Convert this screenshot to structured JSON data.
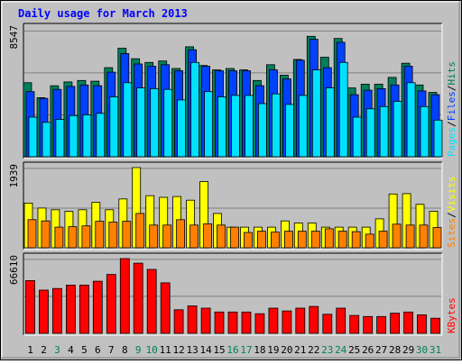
{
  "title": "Daily usage for March 2013",
  "colors": {
    "outer_bg": "#c0c0c0",
    "plot_bg": "#c0c0c0",
    "hits": "#00805c",
    "files": "#0040ff",
    "pages": "#00e0ff",
    "visits": "#ffff00",
    "sites": "#ff8000",
    "kbytes": "#ff0000",
    "title": "#0000ff",
    "day_weekday": "#000000",
    "day_weekend": "#00805c",
    "gridline": "#808080"
  },
  "chart_data": [
    {
      "type": "bar",
      "panel": "hits-files-pages",
      "y_max_label": "8547",
      "ylim": [
        0,
        8547
      ],
      "side_labels": [
        "Pages",
        "Files",
        "Hits"
      ],
      "side_colors": [
        "#00e0ff",
        "#0040ff",
        "#00805c"
      ],
      "categories": [
        "1",
        "2",
        "3",
        "4",
        "5",
        "6",
        "7",
        "8",
        "9",
        "10",
        "11",
        "12",
        "13",
        "14",
        "15",
        "16",
        "17",
        "18",
        "19",
        "20",
        "21",
        "22",
        "23",
        "24",
        "25",
        "26",
        "27",
        "28",
        "29",
        "30",
        "31"
      ],
      "series": [
        {
          "name": "Hits",
          "color": "#00805c",
          "values": [
            4950,
            3950,
            4740,
            5000,
            5100,
            5050,
            5950,
            7250,
            6550,
            6300,
            6400,
            5900,
            7350,
            6100,
            5800,
            5900,
            5800,
            5100,
            6150,
            5450,
            6500,
            8050,
            6650,
            7900,
            4600,
            4850,
            4850,
            5300,
            6250,
            4800,
            4300
          ]
        },
        {
          "name": "Files",
          "color": "#0040ff",
          "values": [
            4350,
            3900,
            4500,
            4700,
            4800,
            4750,
            5650,
            6900,
            6200,
            6050,
            6150,
            5750,
            7150,
            6050,
            5750,
            5750,
            5750,
            4750,
            5800,
            5200,
            6450,
            7850,
            5950,
            7650,
            4150,
            4450,
            4550,
            4800,
            6050,
            4400,
            4150
          ]
        },
        {
          "name": "Pages",
          "color": "#00e0ff",
          "values": [
            2650,
            2300,
            2500,
            2750,
            2800,
            2900,
            4000,
            4950,
            4600,
            4550,
            4500,
            3800,
            6300,
            4350,
            4000,
            4100,
            4100,
            3550,
            4200,
            3500,
            4100,
            5800,
            4600,
            6300,
            2650,
            3200,
            3350,
            3700,
            4950,
            3350,
            2450
          ]
        }
      ]
    },
    {
      "type": "bar",
      "panel": "visits-sites",
      "y_max_label": "1939",
      "ylim": [
        0,
        1939
      ],
      "side_labels": [
        "Sites",
        "Visits"
      ],
      "side_colors": [
        "#ff8000",
        "#ffff00"
      ],
      "categories": [
        "1",
        "2",
        "3",
        "4",
        "5",
        "6",
        "7",
        "8",
        "9",
        "10",
        "11",
        "12",
        "13",
        "14",
        "15",
        "16",
        "17",
        "18",
        "19",
        "20",
        "21",
        "22",
        "23",
        "24",
        "25",
        "26",
        "27",
        "28",
        "29",
        "30",
        "31"
      ],
      "series": [
        {
          "name": "Visits",
          "color": "#ffff00",
          "values": [
            1080,
            960,
            920,
            880,
            920,
            1100,
            920,
            1180,
            1939,
            1260,
            1220,
            1240,
            1150,
            1600,
            830,
            500,
            500,
            500,
            500,
            650,
            600,
            600,
            500,
            500,
            500,
            500,
            700,
            1300,
            1310,
            1050,
            880
          ]
        },
        {
          "name": "Sites",
          "color": "#ff8000",
          "values": [
            680,
            650,
            500,
            510,
            530,
            640,
            620,
            640,
            830,
            550,
            550,
            680,
            550,
            580,
            550,
            500,
            370,
            400,
            380,
            400,
            400,
            400,
            460,
            400,
            390,
            330,
            400,
            570,
            550,
            550,
            490
          ]
        }
      ]
    },
    {
      "type": "bar",
      "panel": "kbytes",
      "y_max_label": "66610",
      "ylim": [
        0,
        66610
      ],
      "side_labels": [
        "KBytes"
      ],
      "side_colors": [
        "#ff0000"
      ],
      "categories": [
        "1",
        "2",
        "3",
        "4",
        "5",
        "6",
        "7",
        "8",
        "9",
        "10",
        "11",
        "12",
        "13",
        "14",
        "15",
        "16",
        "17",
        "18",
        "19",
        "20",
        "21",
        "22",
        "23",
        "24",
        "25",
        "26",
        "27",
        "28",
        "29",
        "30",
        "31"
      ],
      "series": [
        {
          "name": "KBytes",
          "color": "#ff0000",
          "values": [
            47000,
            38500,
            40000,
            43000,
            43000,
            46500,
            52500,
            66610,
            62500,
            57000,
            45000,
            21000,
            24500,
            22500,
            19000,
            19000,
            19000,
            17500,
            22500,
            20000,
            22500,
            24000,
            17000,
            22500,
            16000,
            15000,
            15000,
            18000,
            19000,
            16500,
            13500
          ]
        }
      ]
    }
  ],
  "days": [
    {
      "label": "1",
      "weekend": false
    },
    {
      "label": "2",
      "weekend": false
    },
    {
      "label": "3",
      "weekend": true
    },
    {
      "label": "4",
      "weekend": false
    },
    {
      "label": "5",
      "weekend": false
    },
    {
      "label": "6",
      "weekend": false
    },
    {
      "label": "7",
      "weekend": false
    },
    {
      "label": "8",
      "weekend": false
    },
    {
      "label": "9",
      "weekend": true
    },
    {
      "label": "10",
      "weekend": true
    },
    {
      "label": "11",
      "weekend": false
    },
    {
      "label": "12",
      "weekend": false
    },
    {
      "label": "13",
      "weekend": false
    },
    {
      "label": "14",
      "weekend": false
    },
    {
      "label": "15",
      "weekend": false
    },
    {
      "label": "16",
      "weekend": true
    },
    {
      "label": "17",
      "weekend": true
    },
    {
      "label": "18",
      "weekend": false
    },
    {
      "label": "19",
      "weekend": false
    },
    {
      "label": "20",
      "weekend": false
    },
    {
      "label": "21",
      "weekend": false
    },
    {
      "label": "22",
      "weekend": false
    },
    {
      "label": "23",
      "weekend": true
    },
    {
      "label": "24",
      "weekend": true
    },
    {
      "label": "25",
      "weekend": false
    },
    {
      "label": "26",
      "weekend": false
    },
    {
      "label": "27",
      "weekend": false
    },
    {
      "label": "28",
      "weekend": false
    },
    {
      "label": "29",
      "weekend": false
    },
    {
      "label": "30",
      "weekend": true
    },
    {
      "label": "31",
      "weekend": true
    }
  ]
}
